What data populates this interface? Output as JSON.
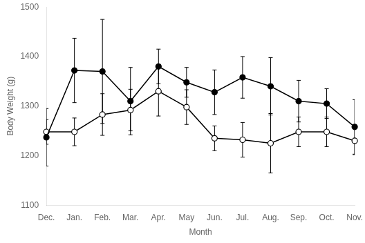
{
  "chart_data": {
    "type": "line",
    "xlabel": "Month",
    "ylabel": "Body Weight (g)",
    "categories": [
      "Dec.",
      "Jan.",
      "Feb.",
      "Mar.",
      "Apr.",
      "May",
      "Jun.",
      "Jul.",
      "Aug.",
      "Sep.",
      "Oct.",
      "Nov."
    ],
    "series": [
      {
        "color": "#000000",
        "marker": "filled_circle",
        "values": [
          1237,
          1372,
          1370,
          1310,
          1380,
          1348,
          1328,
          1358,
          1340,
          1310,
          1305,
          1258
        ],
        "errors": [
          58,
          65,
          105,
          68,
          35,
          30,
          45,
          42,
          58,
          42,
          30,
          55
        ]
      },
      {
        "color": "#000000",
        "marker": "open_circle",
        "values": [
          1248,
          1248,
          1283,
          1292,
          1330,
          1298,
          1235,
          1232,
          1225,
          1248,
          1248,
          1230
        ],
        "errors": [
          25,
          28,
          42,
          42,
          50,
          35,
          25,
          35,
          60,
          30,
          30,
          28
        ]
      }
    ],
    "ylim": [
      1100,
      1500
    ],
    "yticks": [
      1100,
      1200,
      1300,
      1400,
      1500
    ],
    "grid": false
  }
}
